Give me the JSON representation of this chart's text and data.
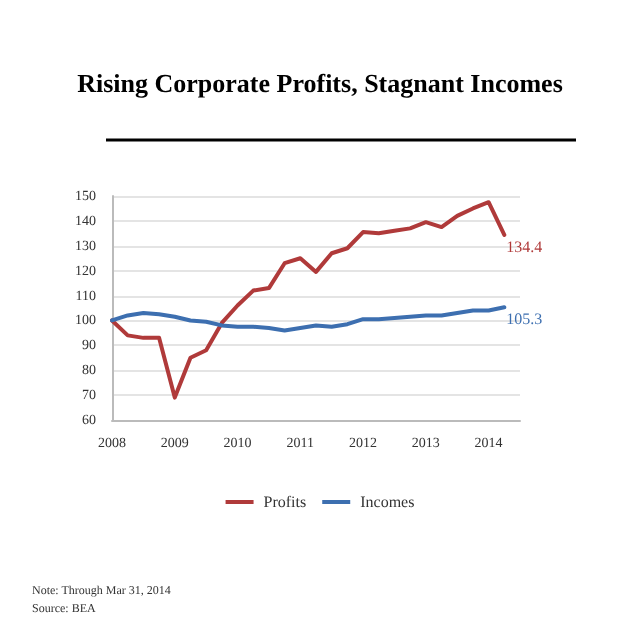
{
  "chart_data": {
    "type": "line",
    "title": "Rising Corporate Profits, Stagnant Incomes",
    "x": [
      2008,
      2008.25,
      2008.5,
      2008.75,
      2009,
      2009.25,
      2009.5,
      2009.75,
      2010,
      2010.25,
      2010.5,
      2010.75,
      2011,
      2011.25,
      2011.5,
      2011.75,
      2012,
      2012.25,
      2012.5,
      2012.75,
      2013,
      2013.25,
      2013.5,
      2013.75,
      2014,
      2014.25
    ],
    "series": [
      {
        "name": "Profits",
        "color": "#b03a3a",
        "values": [
          100,
          94,
          93,
          93,
          69,
          85,
          88,
          99,
          106,
          112,
          113,
          123,
          125,
          119.5,
          127,
          129,
          135.5,
          135,
          136,
          137,
          139.5,
          137.5,
          142,
          145,
          147.5,
          134.4
        ],
        "value_labels": [
          null,
          null,
          null,
          null,
          null,
          null,
          null,
          null,
          null,
          null,
          null,
          null,
          null,
          null,
          null,
          null,
          null,
          null,
          null,
          null,
          null,
          null,
          null,
          null,
          null,
          "134.4"
        ]
      },
      {
        "name": "Incomes",
        "color": "#3d6fb0",
        "values": [
          100,
          102,
          103,
          102.5,
          101.5,
          100,
          99.5,
          98,
          97.5,
          97.5,
          97,
          96,
          97,
          98,
          97.5,
          98.5,
          100.5,
          100.5,
          101,
          101.5,
          102,
          102,
          103,
          104,
          104,
          105.3
        ],
        "value_labels": [
          null,
          null,
          null,
          null,
          null,
          null,
          null,
          null,
          null,
          null,
          null,
          null,
          null,
          null,
          null,
          null,
          null,
          null,
          null,
          null,
          null,
          null,
          null,
          null,
          null,
          "105.3"
        ]
      }
    ],
    "xlim": [
      2008,
      2014.5
    ],
    "xticks": [
      2008,
      2009,
      2010,
      2011,
      2012,
      2013,
      2014
    ],
    "ylim": [
      60,
      150
    ],
    "yticks": [
      60,
      70,
      80,
      90,
      100,
      110,
      120,
      130,
      140,
      150
    ],
    "grid": "y",
    "legend": "bottom",
    "marker": "none",
    "line_style": "solid",
    "annotations": [
      "Note: Through Mar 31, 2014",
      "Source: BEA"
    ]
  }
}
